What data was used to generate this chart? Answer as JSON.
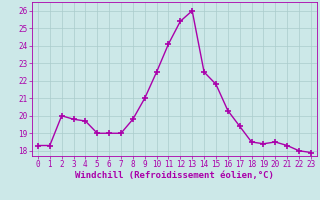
{
  "x": [
    0,
    1,
    2,
    3,
    4,
    5,
    6,
    7,
    8,
    9,
    10,
    11,
    12,
    13,
    14,
    15,
    16,
    17,
    18,
    19,
    20,
    21,
    22,
    23
  ],
  "y": [
    18.3,
    18.3,
    20.0,
    19.8,
    19.7,
    19.0,
    19.0,
    19.0,
    19.8,
    21.0,
    22.5,
    24.1,
    25.4,
    26.0,
    22.5,
    21.8,
    20.3,
    19.4,
    18.5,
    18.4,
    18.5,
    18.3,
    18.0,
    17.9
  ],
  "line_color": "#aa00aa",
  "marker": "+",
  "marker_size": 4,
  "marker_linewidth": 1.2,
  "line_width": 1.0,
  "xlabel": "Windchill (Refroidissement éolien,°C)",
  "xlim": [
    -0.5,
    23.5
  ],
  "ylim": [
    17.7,
    26.5
  ],
  "yticks": [
    18,
    19,
    20,
    21,
    22,
    23,
    24,
    25,
    26
  ],
  "xticks": [
    0,
    1,
    2,
    3,
    4,
    5,
    6,
    7,
    8,
    9,
    10,
    11,
    12,
    13,
    14,
    15,
    16,
    17,
    18,
    19,
    20,
    21,
    22,
    23
  ],
  "bg_color": "#cce8e8",
  "grid_color": "#aacccc",
  "line_fg": "#aa00aa",
  "font_size_ticks": 5.5,
  "font_size_xlabel": 6.5
}
